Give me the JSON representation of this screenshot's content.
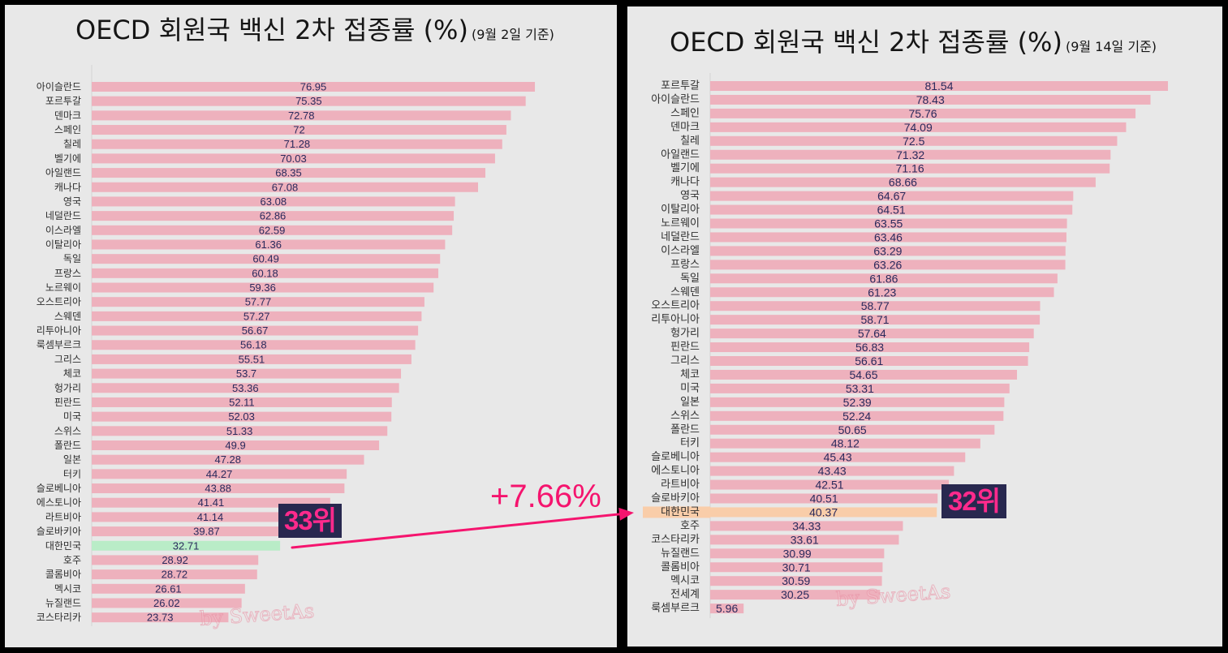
{
  "colors": {
    "page_background": "#000000",
    "panel_background": "#e8e8e8",
    "value_text": "#2a2a5c",
    "rank_box": "#28284f",
    "rank_text": "#ff2a8c"
  },
  "chart_data": [
    {
      "type": "bar",
      "orientation": "horizontal",
      "title": "OECD 회원국 백신 2차 접종률 (%)",
      "subtitle": "(9월 2일 기준)",
      "categories": [
        "아이슬란드",
        "포르투갈",
        "덴마크",
        "스페인",
        "칠레",
        "벨기에",
        "아일랜드",
        "캐나다",
        "영국",
        "네덜란드",
        "이스라엘",
        "이탈리아",
        "독일",
        "프랑스",
        "노르웨이",
        "오스트리아",
        "스웨덴",
        "리투아니아",
        "룩셈부르크",
        "그리스",
        "체코",
        "헝가리",
        "핀란드",
        "미국",
        "스위스",
        "폴란드",
        "일본",
        "터키",
        "슬로베니아",
        "에스토니아",
        "라트비아",
        "슬로바키아",
        "대한민국",
        "호주",
        "콜롬비아",
        "멕시코",
        "뉴질랜드",
        "코스타리카"
      ],
      "values": [
        76.95,
        75.35,
        72.78,
        72,
        71.28,
        70.03,
        68.35,
        67.08,
        63.08,
        62.86,
        62.59,
        61.36,
        60.49,
        60.18,
        59.36,
        57.77,
        57.27,
        56.67,
        56.18,
        55.51,
        53.7,
        53.36,
        52.11,
        52.03,
        51.33,
        49.9,
        47.28,
        44.27,
        43.88,
        41.41,
        41.14,
        39.87,
        32.71,
        28.92,
        28.72,
        26.61,
        26.02,
        23.73
      ],
      "bar_color": "#eeb1bd",
      "highlight": {
        "category": "대한민국",
        "color": "#b9ecc7"
      },
      "rank_label": "33위",
      "watermark": "by SweetAs",
      "grid": false
    },
    {
      "type": "bar",
      "orientation": "horizontal",
      "title": "OECD 회원국 백신 2차 접종률 (%)",
      "subtitle": "(9월 14일 기준)",
      "categories": [
        "포르투갈",
        "아이슬란드",
        "스페인",
        "덴마크",
        "칠레",
        "아일랜드",
        "벨기에",
        "캐나다",
        "영국",
        "이탈리아",
        "노르웨이",
        "네덜란드",
        "이스라엘",
        "프랑스",
        "독일",
        "스웨덴",
        "오스트리아",
        "리투아니아",
        "헝가리",
        "핀란드",
        "그리스",
        "체코",
        "미국",
        "일본",
        "스위스",
        "폴란드",
        "터키",
        "슬로베니아",
        "에스토니아",
        "라트비아",
        "슬로바키아",
        "대한민국",
        "호주",
        "코스타리카",
        "뉴질랜드",
        "콜롬비아",
        "멕시코",
        "전세계",
        "룩셈부르크"
      ],
      "values": [
        81.54,
        78.43,
        75.76,
        74.09,
        72.5,
        71.32,
        71.16,
        68.66,
        64.67,
        64.51,
        63.55,
        63.46,
        63.29,
        63.26,
        61.86,
        61.23,
        58.77,
        58.71,
        57.64,
        56.83,
        56.61,
        54.65,
        53.31,
        52.39,
        52.24,
        50.65,
        48.12,
        45.43,
        43.43,
        42.51,
        40.51,
        40.37,
        34.33,
        33.61,
        30.99,
        30.71,
        30.59,
        30.25,
        5.96
      ],
      "bar_color": "#eeb1bd",
      "highlight": {
        "category": "대한민국",
        "color": "#f9cda9"
      },
      "rank_label": "32위",
      "watermark": "by SweetAs",
      "grid": false
    }
  ],
  "annotation": {
    "change_label": "+7.66%",
    "color": "#f5146e"
  }
}
